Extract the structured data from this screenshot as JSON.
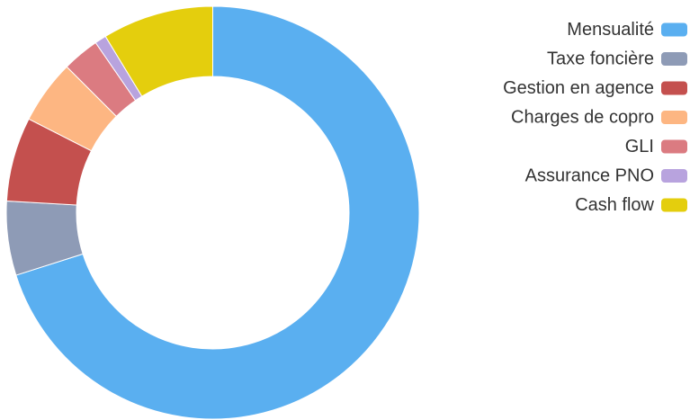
{
  "chart_data": {
    "type": "pie",
    "variant": "doughnut",
    "legend_position": "right",
    "categories": [
      "Mensualité",
      "Taxe foncière",
      "Gestion en agence",
      "Charges de copro",
      "GLI",
      "Assurance PNO",
      "Cash flow"
    ],
    "values": [
      70.1,
      5.8,
      6.6,
      5.0,
      2.9,
      0.9,
      8.7
    ],
    "colors": [
      "#5aaff0",
      "#8e9bb6",
      "#c4504e",
      "#fdb682",
      "#db7b81",
      "#b8a3de",
      "#e4ce0d"
    ]
  }
}
